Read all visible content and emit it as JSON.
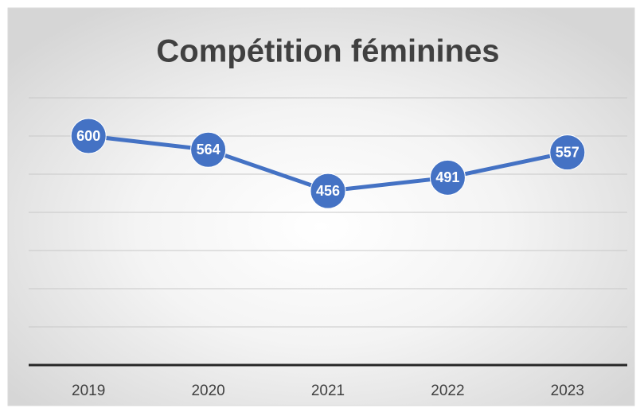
{
  "chart_data": {
    "type": "line",
    "title": "Compétition féminines",
    "categories": [
      "2019",
      "2020",
      "2021",
      "2022",
      "2023"
    ],
    "values": [
      600,
      564,
      456,
      491,
      557
    ],
    "color": "#4472c4",
    "ylim": [
      0,
      700
    ],
    "yticks": [
      0,
      100,
      200,
      300,
      400,
      500,
      600,
      700
    ],
    "grid": true
  }
}
